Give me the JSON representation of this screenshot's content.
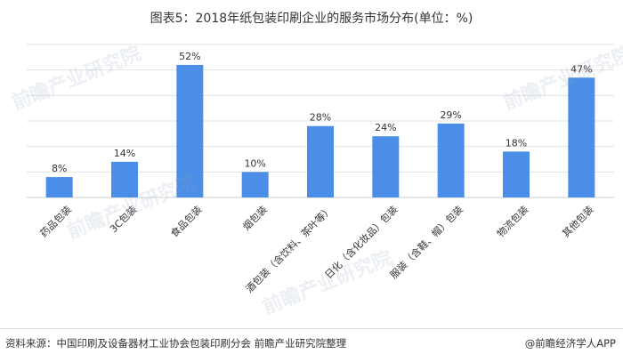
{
  "title": "图表5：2018年纸包装印刷企业的服务市场分布(单位：%)",
  "chart_data": {
    "type": "bar",
    "title": "图表5：2018年纸包装印刷企业的服务市场分布(单位：%)",
    "categories": [
      "药品包装",
      "3C包装",
      "食品包装",
      "烟包装",
      "酒包装（含饮料、茶叶等）",
      "日化（含化妆品）包装",
      "服装（含鞋、帽）包装",
      "物流包装",
      "其他包装"
    ],
    "values": [
      8,
      14,
      52,
      10,
      28,
      24,
      29,
      18,
      47
    ],
    "value_labels": [
      "8%",
      "14%",
      "52%",
      "10%",
      "28%",
      "24%",
      "29%",
      "18%",
      "47%"
    ],
    "ylim": [
      0,
      60
    ],
    "grid": true,
    "bar_color": "#4a8ee8",
    "grid_color": "#e3e3e3"
  },
  "footer": {
    "source": "资料来源：中国印刷及设备器材工业协会包装印刷分会 前瞻产业研究院整理",
    "brand": "@前瞻经济学人APP"
  },
  "watermark": "前瞻产业研究院"
}
